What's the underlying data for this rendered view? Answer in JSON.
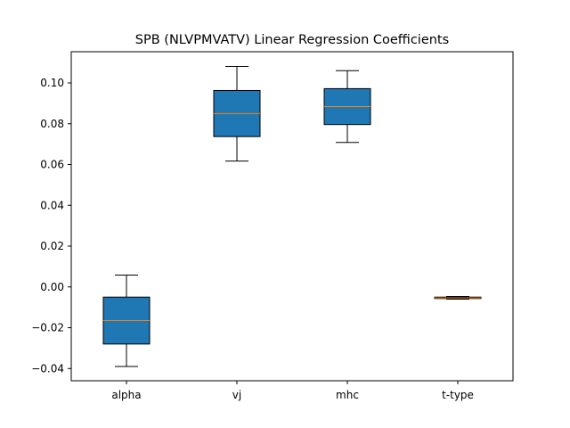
{
  "chart_data": {
    "type": "boxplot",
    "title": "SPB (NLVPMVATV) Linear Regression Coefficients",
    "xlabel": "",
    "ylabel": "",
    "categories": [
      "alpha",
      "vj",
      "mhc",
      "t-type"
    ],
    "boxes": [
      {
        "category": "alpha",
        "whisker_low": -0.039,
        "q1": -0.028,
        "median": -0.0165,
        "q3": -0.005,
        "whisker_high": 0.0058
      },
      {
        "category": "vj",
        "whisker_low": 0.0617,
        "q1": 0.0737,
        "median": 0.085,
        "q3": 0.0963,
        "whisker_high": 0.1081
      },
      {
        "category": "mhc",
        "whisker_low": 0.0708,
        "q1": 0.0796,
        "median": 0.0884,
        "q3": 0.0972,
        "whisker_high": 0.106
      },
      {
        "category": "t-type",
        "whisker_low": -0.006,
        "q1": -0.0057,
        "median": -0.0054,
        "q3": -0.005,
        "whisker_high": -0.0047
      }
    ],
    "ylim": [
      -0.046,
      0.1153
    ],
    "yticks": [
      -0.04,
      -0.02,
      0.0,
      0.02,
      0.04,
      0.06,
      0.08,
      0.1
    ],
    "ytick_labels": [
      "−0.04",
      "−0.02",
      "0.00",
      "0.02",
      "0.04",
      "0.06",
      "0.08",
      "0.10"
    ],
    "grid": false,
    "legend": "none",
    "colors": {
      "box_fill": "#1f77b4",
      "box_edge": "#000000",
      "median": "#ff7f0e",
      "whisker": "#000000",
      "axes": "#000000",
      "background": "#ffffff"
    }
  }
}
